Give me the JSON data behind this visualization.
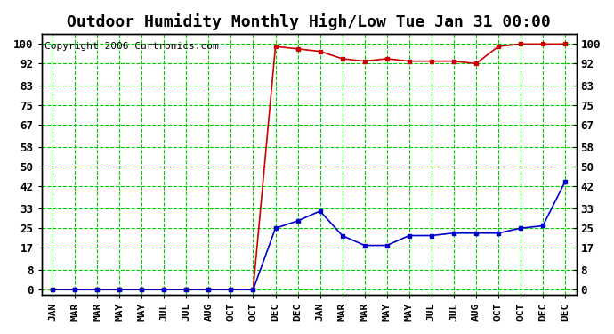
{
  "title": "Outdoor Humidity Monthly High/Low Tue Jan 31 00:00",
  "copyright": "Copyright 2006 Curtronics.com",
  "x_labels": [
    "JAN",
    "MAR",
    "MAR",
    "MAY",
    "MAY",
    "JUL",
    "JUL",
    "AUG",
    "OCT",
    "OCT",
    "DEC",
    "DEC",
    "JAN",
    "MAR",
    "MAR",
    "MAY",
    "MAY",
    "JUL",
    "JUL",
    "AUG",
    "OCT",
    "OCT",
    "DEC",
    "DEC"
  ],
  "y_ticks": [
    0,
    8,
    17,
    25,
    33,
    42,
    50,
    58,
    67,
    75,
    83,
    92,
    100
  ],
  "high_values": [
    0,
    0,
    0,
    0,
    0,
    0,
    0,
    0,
    0,
    0,
    99,
    98,
    97,
    94,
    93,
    94,
    93,
    93,
    93,
    92,
    99,
    100,
    100,
    100
  ],
  "low_values": [
    0,
    0,
    0,
    0,
    0,
    0,
    0,
    0,
    0,
    0,
    25,
    28,
    32,
    22,
    18,
    18,
    22,
    22,
    23,
    23,
    23,
    25,
    26,
    44
  ],
  "n_points": 24,
  "bg_color": "#ffffff",
  "plot_bg_color": "#ffffff",
  "high_color": "#cc0000",
  "low_color": "#0000cc",
  "grid_color": "#00cc00",
  "grid_style": "--",
  "title_fontsize": 13,
  "axis_label_fontsize": 8,
  "y_label_fontsize": 9,
  "copyright_fontsize": 8
}
